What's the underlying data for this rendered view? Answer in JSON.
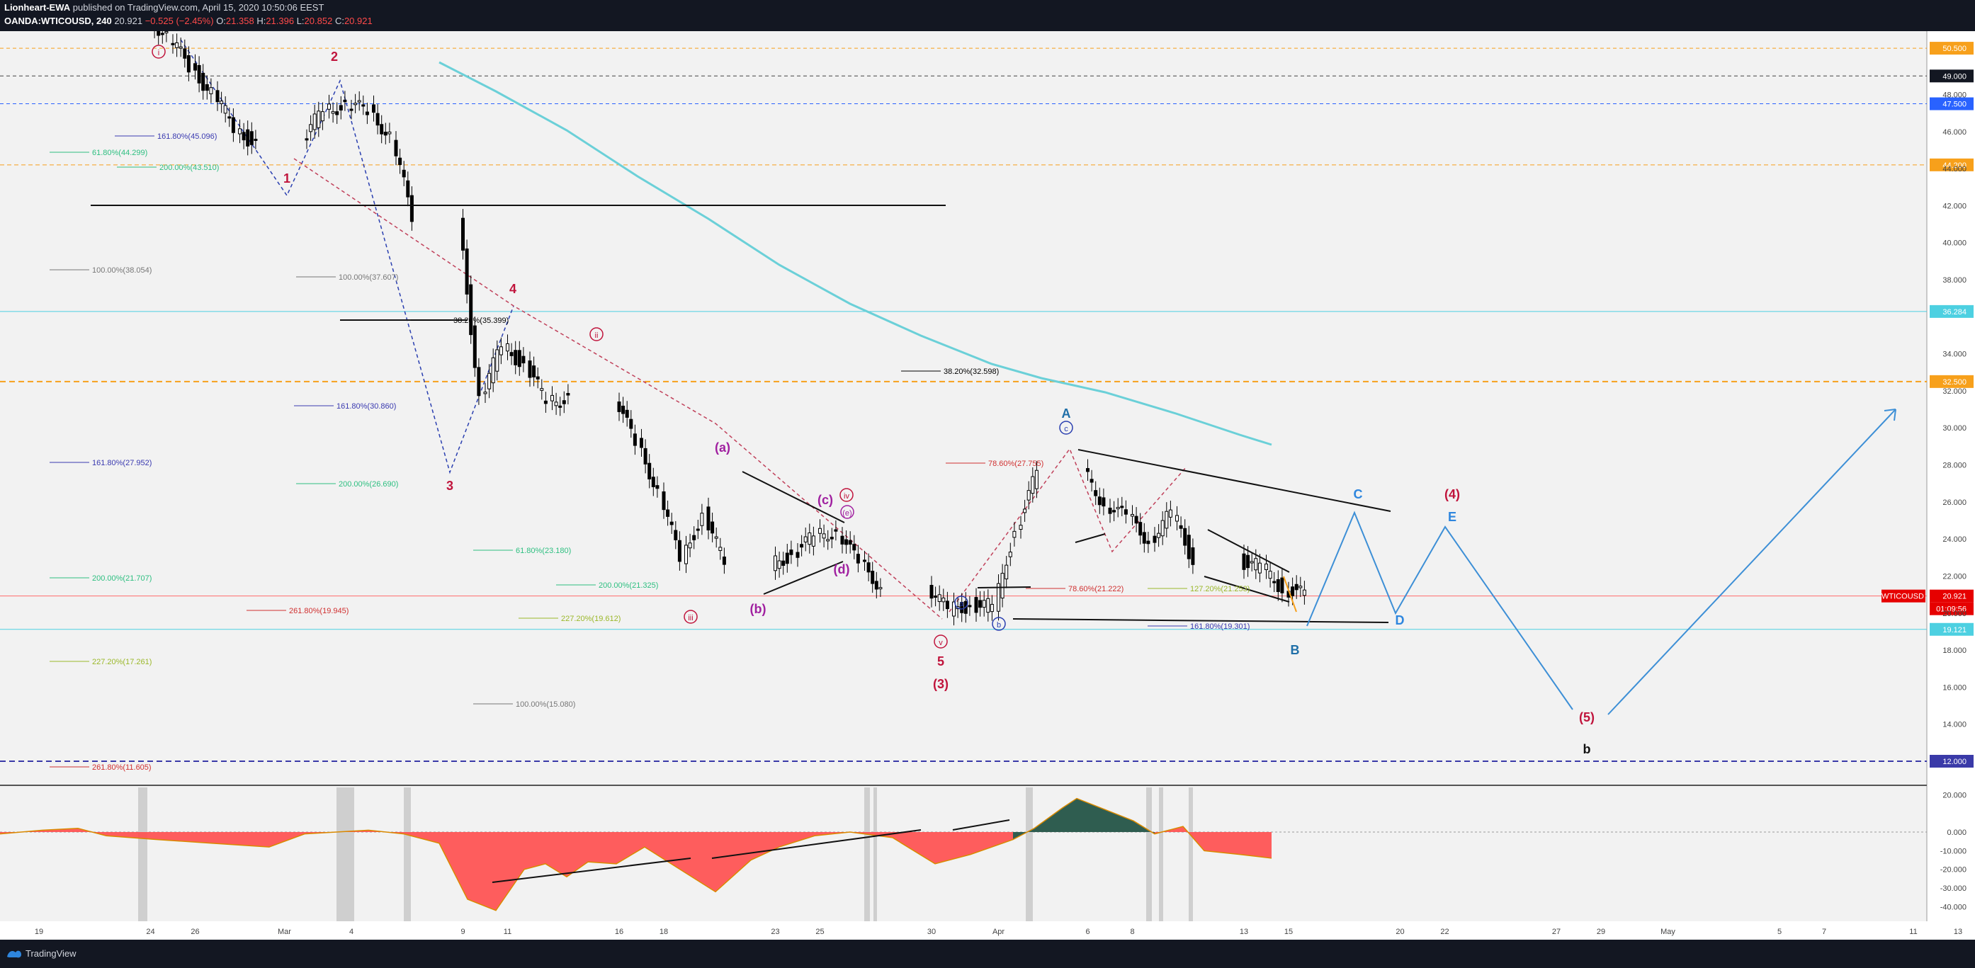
{
  "header": {
    "publisher": "Lionheart-EWA",
    "published_text": "published on TradingView.com, April 15, 2020 10:50:06 EEST",
    "symbol": "OANDA:WTICOUSD, 240",
    "last": "20.921",
    "change": "−0.525 (−2.45%)",
    "o_label": "O:",
    "o_val": "21.358",
    "h_label": "H:",
    "h_val": "21.396",
    "l_label": "L:",
    "l_val": "20.852",
    "c_label": "C:",
    "c_val": "20.921"
  },
  "footer": {
    "brand": "TradingView"
  },
  "colors": {
    "background": "#f2f2f2",
    "frame": "#131722",
    "up": "#26a69a",
    "down": "#ef5350",
    "candle": "#000000",
    "ma": "#6bd0d8",
    "osc_pos_dark": "#2f5d50",
    "osc_pos_light": "#7aa6e8",
    "osc_neg_red": "#ff4d4d",
    "osc_neg_orange": "#ffb54a",
    "wave_blue": "#3d8fd6",
    "wave_red": "#c0143c"
  },
  "chart_data": [
    {
      "type": "line",
      "series": [
        {
          "name": "WTICOUSD",
          "x": [
            "02-19",
            "02-20",
            "02-21",
            "02-24",
            "02-25",
            "02-26",
            "02-27",
            "02-28",
            "03-02",
            "03-03",
            "03-04",
            "03-05",
            "03-06",
            "03-09",
            "03-10",
            "03-11",
            "03-12",
            "03-13",
            "03-16",
            "03-17",
            "03-18",
            "03-19",
            "03-20",
            "03-23",
            "03-24",
            "03-25",
            "03-26",
            "03-27",
            "03-30",
            "03-31",
            "04-01",
            "04-02",
            "04-03",
            "04-06",
            "04-07",
            "04-08",
            "04-09",
            "04-10",
            "04-13",
            "04-14",
            "04-15"
          ],
          "y": [
            53.2,
            52.9,
            52.4,
            51.1,
            49.5,
            48.1,
            46.2,
            45.3,
            47.3,
            47.4,
            47.1,
            45.8,
            41.3,
            31.6,
            34.5,
            33.4,
            31.4,
            31.7,
            29.1,
            26.7,
            22.8,
            25.4,
            22.6,
            23.2,
            24.1,
            24.5,
            22.6,
            21.5,
            20.1,
            20.5,
            20.3,
            24.6,
            27.5,
            26.0,
            25.1,
            24.0,
            25.3,
            22.9,
            22.4,
            21.4,
            20.921
          ]
        }
      ],
      "y_ticks": [
        "50.500",
        "49.000",
        "48.000",
        "47.500",
        "46.000",
        "44.200",
        "44.000",
        "42.000",
        "40.000",
        "38.000",
        "36.284",
        "34.000",
        "32.500",
        "32.000",
        "30.000",
        "28.000",
        "26.000",
        "24.000",
        "22.000",
        "20.921",
        "20.000",
        "19.121",
        "18.000",
        "16.000",
        "14.000",
        "12.000"
      ],
      "x_ticks": [
        "19",
        "24",
        "26",
        "Mar",
        "4",
        "9",
        "11",
        "16",
        "18",
        "23",
        "25",
        "30",
        "Apr",
        "6",
        "8",
        "13",
        "15",
        "20",
        "22",
        "27",
        "29",
        "May",
        "5",
        "7",
        "11",
        "13"
      ],
      "price_badges": [
        {
          "label": "50.500",
          "color": "#f7a01b"
        },
        {
          "label": "49.000",
          "color": "#131722"
        },
        {
          "label": "47.500",
          "color": "#2962ff"
        },
        {
          "label": "44.200",
          "color": "#f7a01b"
        },
        {
          "label": "36.284",
          "color": "#4dd0e1"
        },
        {
          "label": "32.500",
          "color": "#f7a01b"
        },
        {
          "label": "20.921",
          "color": "#e60000"
        },
        {
          "label": "01:09:56",
          "color": "#e60000"
        },
        {
          "label": "19.121",
          "color": "#4dd0e1"
        },
        {
          "label": "12.000",
          "color": "#3a3aa8"
        }
      ],
      "current_symbol_badge": "WTICOUSD",
      "fib_labels": [
        {
          "text": "161.80%(45.096)",
          "color": "#3a3ab0"
        },
        {
          "text": "61.80%(44.299)",
          "color": "#2dbf80"
        },
        {
          "text": "200.00%(43.510)",
          "color": "#2dbf80"
        },
        {
          "text": "100.00%(38.054)",
          "color": "#777777"
        },
        {
          "text": "100.00%(37.607)",
          "color": "#777777"
        },
        {
          "text": "38.20%(35.399)",
          "color": "#000000"
        },
        {
          "text": "38.20%(32.598)",
          "color": "#000000"
        },
        {
          "text": "161.80%(30.860)",
          "color": "#3a3ab0"
        },
        {
          "text": "161.80%(27.952)",
          "color": "#3a3ab0"
        },
        {
          "text": "200.00%(26.690)",
          "color": "#2dbf80"
        },
        {
          "text": "78.60%(27.755)",
          "color": "#d03030"
        },
        {
          "text": "61.80%(23.180)",
          "color": "#2dbf80"
        },
        {
          "text": "200.00%(21.707)",
          "color": "#2dbf80"
        },
        {
          "text": "200.00%(21.325)",
          "color": "#2dbf80"
        },
        {
          "text": "78.60%(21.222)",
          "color": "#d03030"
        },
        {
          "text": "127.20%(21.253)",
          "color": "#9bb82a"
        },
        {
          "text": "261.80%(19.945)",
          "color": "#d03030"
        },
        {
          "text": "227.20%(19.612)",
          "color": "#9bb82a"
        },
        {
          "text": "161.80%(19.301)",
          "color": "#3a3ab0"
        },
        {
          "text": "227.20%(17.261)",
          "color": "#9bb82a"
        },
        {
          "text": "100.00%(15.080)",
          "color": "#777777"
        },
        {
          "text": "261.80%(11.605)",
          "color": "#d03030"
        }
      ],
      "wave_labels": [
        "i",
        "1",
        "2",
        "3",
        "4",
        "5",
        "(3)",
        "(4)",
        "(5)",
        "A",
        "B",
        "C",
        "D",
        "E",
        "a",
        "b",
        "c",
        "ii",
        "iii",
        "iv",
        "v",
        "(a)",
        "(b)",
        "(c)",
        "(d)",
        "(e)",
        "b"
      ]
    },
    {
      "type": "area",
      "y_ticks": [
        "20.000",
        "0.000",
        "-10.000",
        "-20.000",
        "-30.000",
        "-40.000"
      ],
      "ylim": [
        -44,
        22
      ]
    }
  ]
}
